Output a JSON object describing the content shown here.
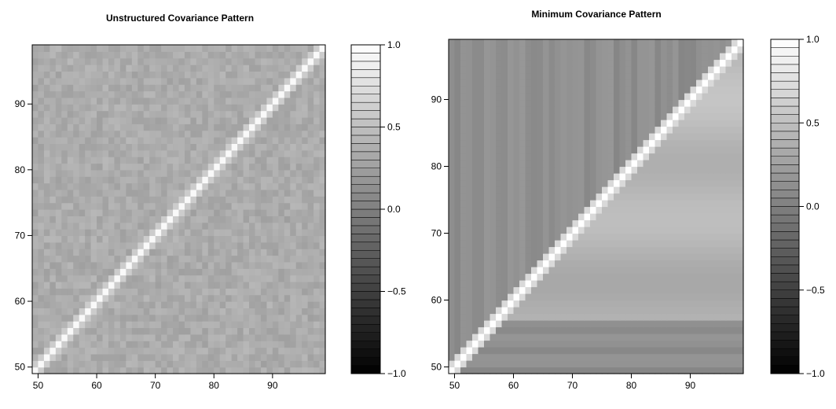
{
  "chart_data": [
    {
      "type": "heatmap",
      "title": "Unstructured Covariance Pattern",
      "xlabel": "",
      "ylabel": "",
      "xlim": [
        49,
        99
      ],
      "ylim": [
        49,
        99
      ],
      "x_ticks": [
        50,
        60,
        70,
        80,
        90
      ],
      "y_ticks": [
        50,
        60,
        70,
        80,
        90
      ],
      "value_range": [
        -1.0,
        1.0
      ],
      "diagonal_value": 1.0,
      "pattern": "unstructured",
      "color_scale": "grayscale",
      "colorbar": {
        "ticks": [
          1.0,
          0.5,
          0.0,
          -0.5,
          -1.0
        ],
        "tick_labels": [
          "1.0",
          "0.5",
          "0.0",
          "−0.5",
          "−1.0"
        ],
        "levels": 40
      }
    },
    {
      "type": "heatmap",
      "title": "Minimum Covariance Pattern",
      "xlabel": "",
      "ylabel": "",
      "xlim": [
        49,
        99
      ],
      "ylim": [
        49,
        99
      ],
      "x_ticks": [
        50,
        60,
        70,
        80,
        90
      ],
      "y_ticks": [
        50,
        60,
        70,
        80,
        90
      ],
      "value_range": [
        -1.0,
        1.0
      ],
      "diagonal_value": 1.0,
      "pattern": "minimum",
      "color_scale": "grayscale",
      "colorbar": {
        "ticks": [
          1.0,
          0.5,
          0.0,
          -0.5,
          -1.0
        ],
        "tick_labels": [
          "1.0",
          "0.5",
          "0.0",
          "−0.5",
          "−1.0"
        ],
        "levels": 40
      }
    }
  ]
}
